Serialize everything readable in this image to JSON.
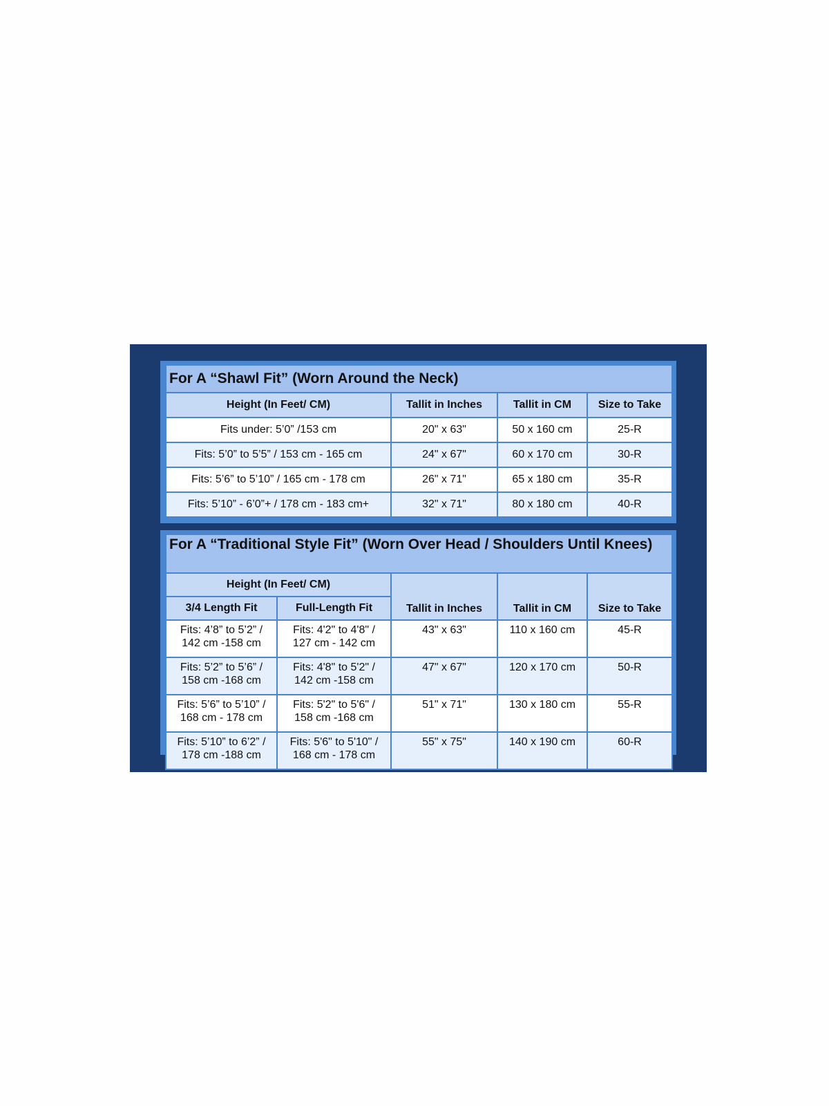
{
  "colors": {
    "panel": "#1b3a6e",
    "border": "#4a86d0",
    "title_bg": "#a4c2f0",
    "header_bg": "#c6d9f5",
    "row_alt": "#e6effc"
  },
  "shawl": {
    "title": "For A “Shawl Fit” (Worn Around the Neck)",
    "headers": [
      "Height (In Feet/ CM)",
      "Tallit in Inches",
      "Tallit in CM",
      "Size to Take"
    ],
    "rows": [
      [
        "Fits under: 5’0” /153 cm",
        "20\" x 63\"",
        "50 x 160 cm",
        "25-R"
      ],
      [
        "Fits: 5’0” to 5’5” / 153 cm - 165 cm",
        "24\" x 67\"",
        "60 x 170 cm",
        "30-R"
      ],
      [
        "Fits: 5’6” to 5’10” / 165 cm - 178 cm",
        "26\" x 71\"",
        "65 x 180 cm",
        "35-R"
      ],
      [
        "Fits: 5’10” - 6’0”+ / 178 cm - 183 cm+",
        "32\" x 71\"",
        "80 x 180 cm",
        "40-R"
      ]
    ]
  },
  "traditional": {
    "title": "For A “Traditional Style Fit” (Worn Over Head / Shoulders Until Knees)",
    "height_header": "Height (In Feet/ CM)",
    "headers": [
      "3/4 Length Fit",
      "Full-Length Fit",
      "Tallit in Inches",
      "Tallit in CM",
      "Size to Take"
    ],
    "rows": [
      [
        [
          "Fits: 4’8” to 5’2” /",
          "142 cm -158 cm"
        ],
        [
          "Fits: 4'2\" to 4'8\" /",
          "127 cm - 142 cm"
        ],
        "43\" x 63\"",
        "110 x 160 cm",
        "45-R"
      ],
      [
        [
          "Fits: 5’2” to 5’6” /",
          "158 cm -168 cm"
        ],
        [
          "Fits: 4'8\" to 5'2\" /",
          "142 cm -158 cm"
        ],
        "47\" x 67\"",
        "120 x 170 cm",
        "50-R"
      ],
      [
        [
          "Fits: 5’6” to 5’10” /",
          "168 cm - 178 cm"
        ],
        [
          "Fits: 5'2\" to 5'6\" /",
          "158 cm -168 cm"
        ],
        "51\" x 71\"",
        "130 x 180 cm",
        "55-R"
      ],
      [
        [
          "Fits: 5’10” to 6’2” /",
          "178 cm -188 cm"
        ],
        [
          "Fits: 5'6\" to 5'10\" /",
          "168 cm - 178 cm"
        ],
        "55\" x 75\"",
        "140 x 190 cm",
        "60-R"
      ]
    ]
  }
}
